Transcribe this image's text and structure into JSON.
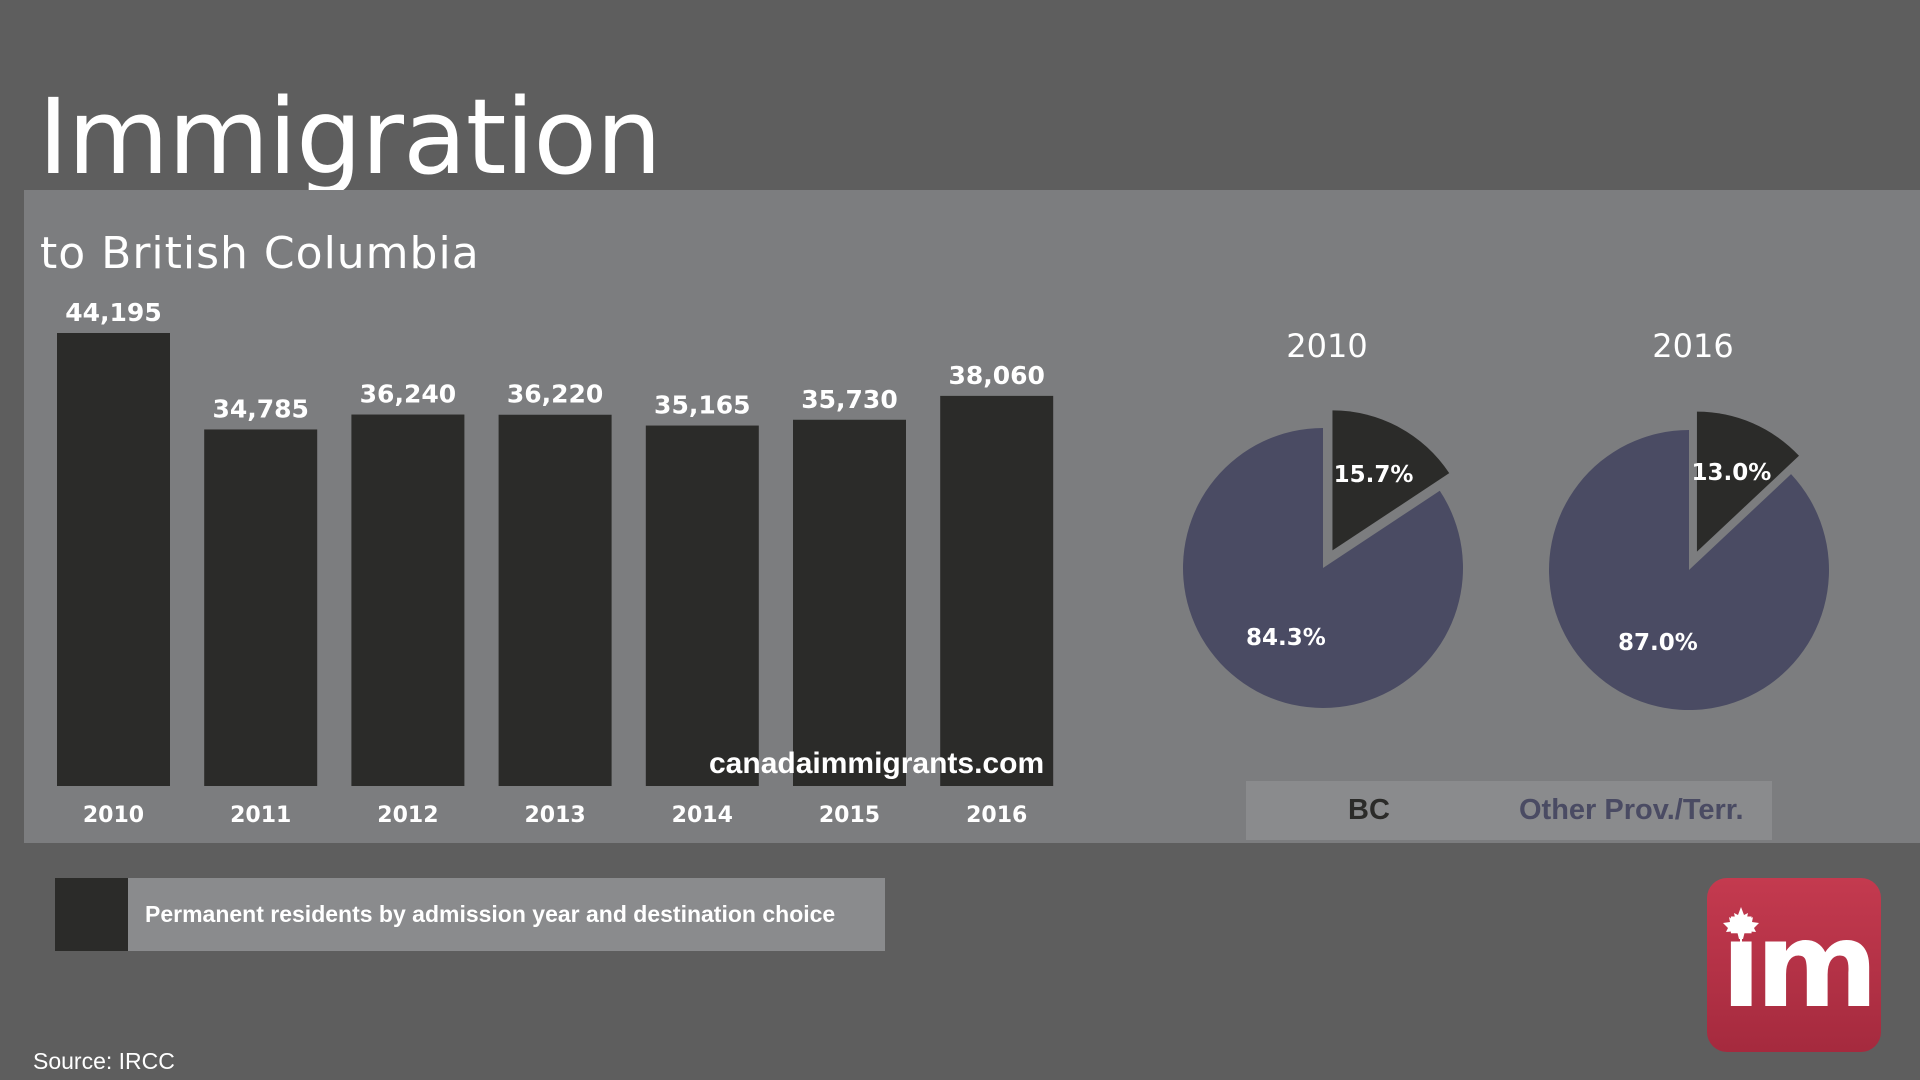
{
  "header": {
    "title": "Immigration",
    "subtitle": "to British Columbia"
  },
  "chart_data": [
    {
      "type": "bar",
      "categories": [
        "2010",
        "2011",
        "2012",
        "2013",
        "2014",
        "2015",
        "2016"
      ],
      "values": [
        44195,
        34785,
        36240,
        36220,
        35165,
        35730,
        38060
      ],
      "value_labels": [
        "44,195",
        "34,785",
        "36,240",
        "36,220",
        "35,165",
        "35,730",
        "38,060"
      ],
      "color": "#2b2b29",
      "grid": false
    },
    {
      "type": "pie",
      "title": "2010",
      "labels": [
        "BC",
        "Other Prov./Terr."
      ],
      "values": [
        15.7,
        84.3
      ],
      "value_labels": [
        "15.7%",
        "84.3%"
      ],
      "colors": [
        "#2b2b29",
        "#4a4b63"
      ]
    },
    {
      "type": "pie",
      "title": "2016",
      "labels": [
        "BC",
        "Other Prov./Terr."
      ],
      "values": [
        13.0,
        87.0
      ],
      "value_labels": [
        "13.0%",
        "87.0%"
      ],
      "colors": [
        "#2b2b29",
        "#4a4b63"
      ]
    }
  ],
  "pie_legend": {
    "bc": "BC",
    "other": "Other Prov./Terr."
  },
  "watermark": "canadaimmigrants.com",
  "caption": "Permanent residents by admission year and destination choice",
  "source": "Source: IRCC",
  "logo": {
    "text": "im",
    "icon": "maple-leaf-icon"
  }
}
